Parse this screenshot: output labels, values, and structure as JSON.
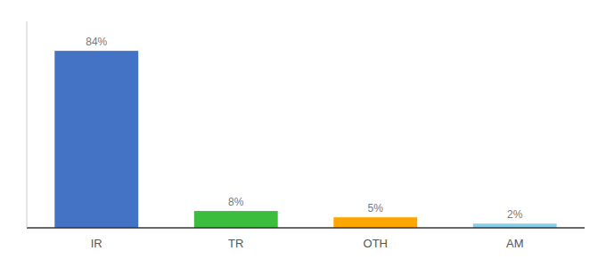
{
  "chart_data": {
    "type": "bar",
    "categories": [
      "IR",
      "TR",
      "OTH",
      "AM"
    ],
    "values": [
      84,
      8,
      5,
      2
    ],
    "value_labels": [
      "84%",
      "8%",
      "5%",
      "2%"
    ],
    "colors": [
      "#4472C4",
      "#3DBD3D",
      "#FFA500",
      "#87CEEB"
    ],
    "ylim": [
      0,
      98
    ],
    "data_labels": true,
    "tick_labels": "x",
    "grid": false
  }
}
